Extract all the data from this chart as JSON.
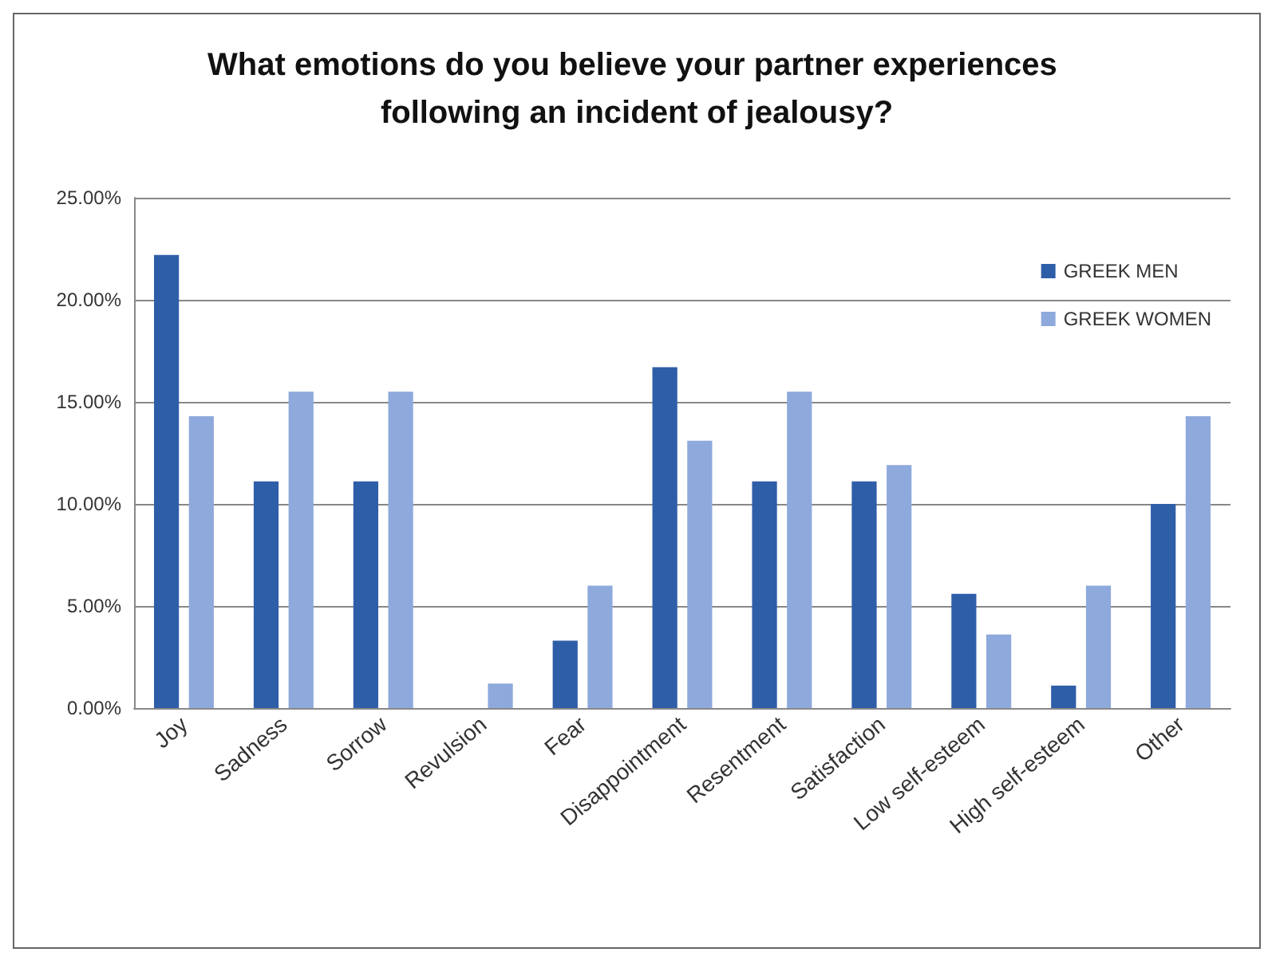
{
  "chart_data": {
    "type": "bar",
    "title": "What emotions do you believe your partner experiences following an incident of jealousy?",
    "categories": [
      "Joy",
      "Sadness",
      "Sorrow",
      "Revulsion",
      "Fear",
      "Disappointment",
      "Resentment",
      "Satisfaction",
      "Low self-esteem",
      "High self-esteem",
      "Other"
    ],
    "series": [
      {
        "name": "GREEK MEN",
        "color": "#2f5ea8",
        "values": [
          22.2,
          11.1,
          11.1,
          0,
          3.3,
          16.7,
          11.1,
          11.1,
          5.6,
          1.1,
          10.0
        ]
      },
      {
        "name": "GREEK WOMEN",
        "color": "#8ea9dc",
        "values": [
          14.3,
          15.5,
          15.5,
          1.2,
          6.0,
          13.1,
          15.5,
          11.9,
          3.6,
          6.0,
          14.3
        ]
      }
    ],
    "ylim": [
      0,
      25
    ],
    "yticks": [
      {
        "value": 0,
        "label": "0.00%"
      },
      {
        "value": 5,
        "label": "5.00%"
      },
      {
        "value": 10,
        "label": "10.00%"
      },
      {
        "value": 15,
        "label": "15.00%"
      },
      {
        "value": 20,
        "label": "20.00%"
      },
      {
        "value": 25,
        "label": "25.00%"
      }
    ],
    "grid": "y",
    "legend": "top right"
  }
}
